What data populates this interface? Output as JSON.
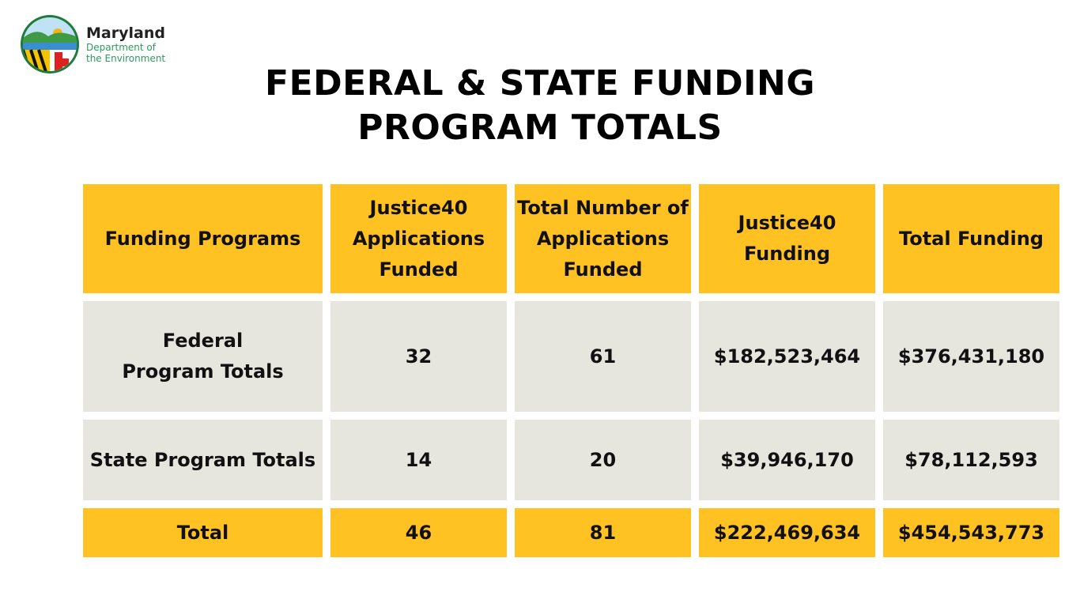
{
  "logo": {
    "name": "Maryland",
    "sub1": "Department of",
    "sub2": "the Environment"
  },
  "title": {
    "line1": "FEDERAL & STATE FUNDING",
    "line2": "PROGRAM TOTALS"
  },
  "table": {
    "headers": [
      "Funding Programs",
      "Justice40 Applications Funded",
      "Total Number of Applications Funded",
      "Justice40 Funding",
      "Total Funding"
    ],
    "rows": [
      [
        "Federal Program Totals",
        "32",
        "61",
        "$182,523,464",
        "$376,431,180"
      ],
      [
        "State Program Totals",
        "14",
        "20",
        "$39,946,170",
        "$78,112,593"
      ]
    ],
    "total": [
      "Total",
      "46",
      "81",
      "$222,469,634",
      "$454,543,773"
    ]
  },
  "colors": {
    "header": "#FFC222",
    "row": "#E6E5DE"
  }
}
